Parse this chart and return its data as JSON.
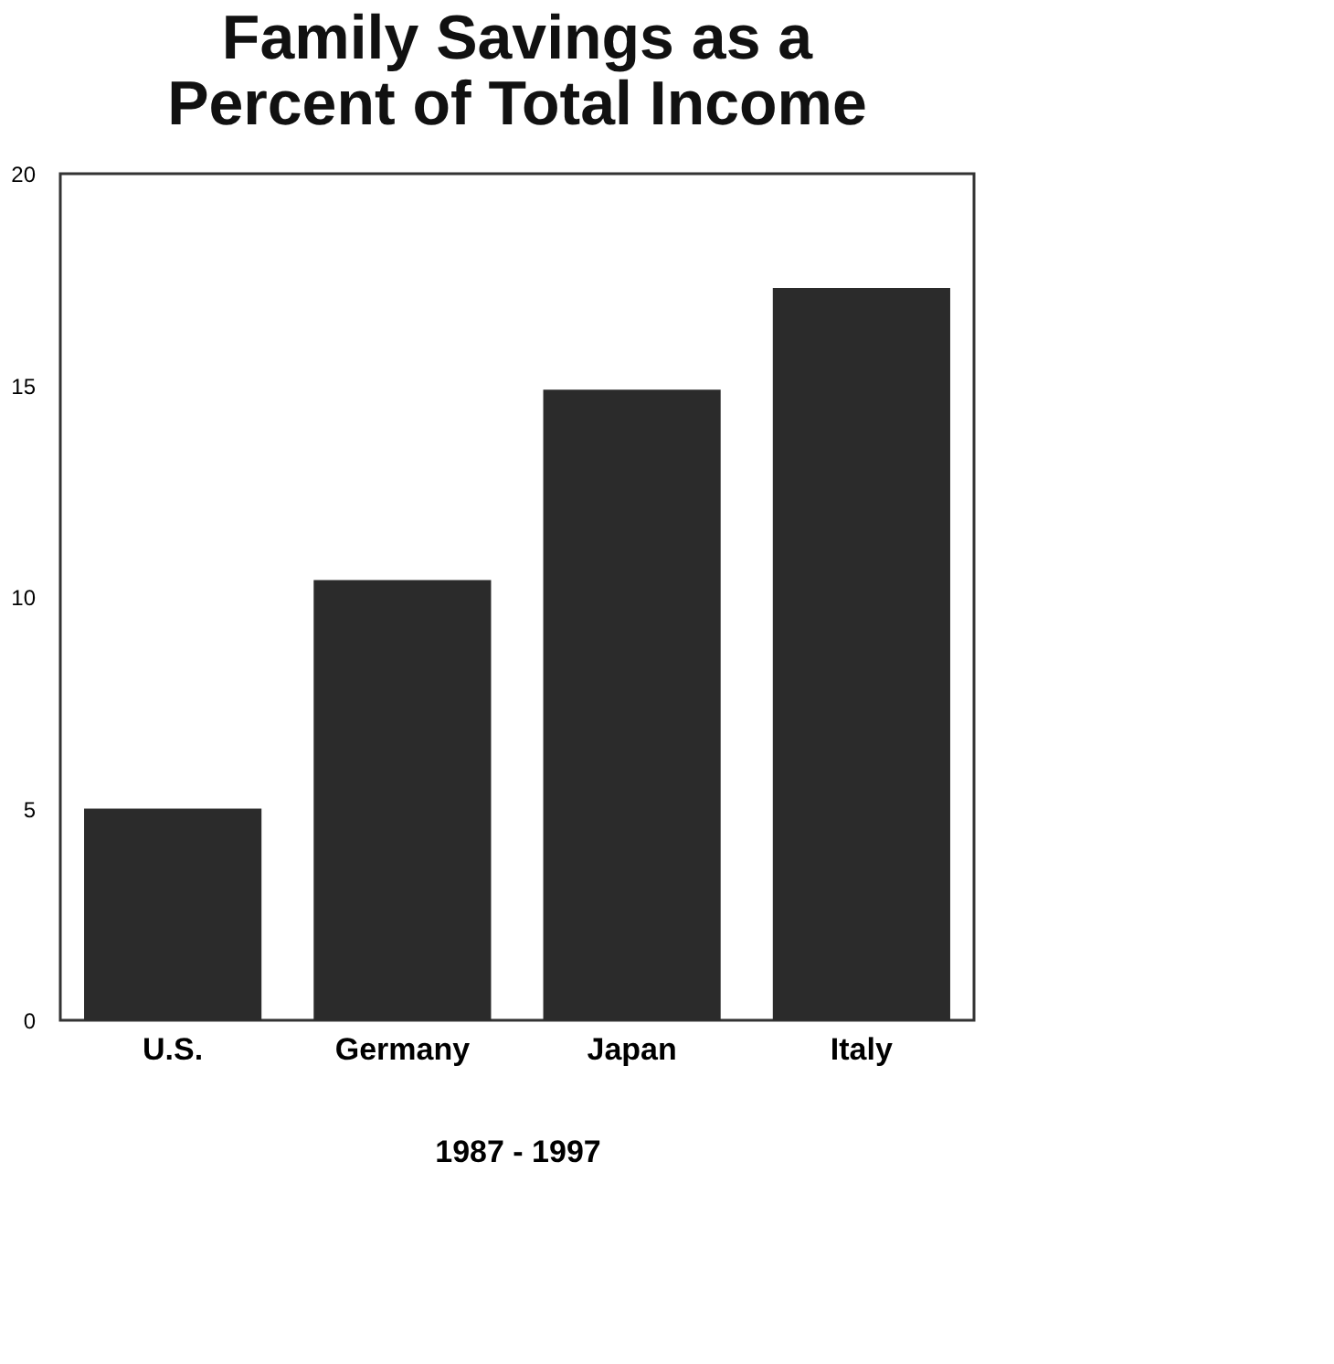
{
  "chart_data": {
    "type": "bar",
    "title": [
      "Family Savings as a",
      "Percent of Total Income"
    ],
    "xlabel": "1987 - 1997",
    "categories": [
      "U.S.",
      "Germany",
      "Japan",
      "Italy"
    ],
    "values": [
      5,
      10.4,
      14.9,
      17.3
    ],
    "color": "#2b2b2b",
    "ylim": [
      0,
      20
    ],
    "yticks": [
      0,
      5,
      10,
      15,
      20
    ],
    "grid": false
  }
}
